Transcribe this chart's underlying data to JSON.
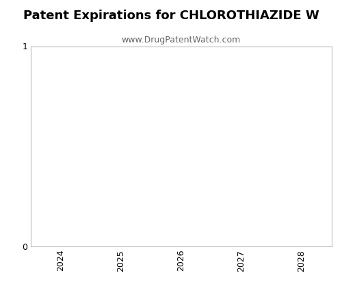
{
  "title": "Patent Expirations for CHLOROTHIAZIDE W",
  "subtitle": "www.DrugPatentWatch.com",
  "title_fontsize": 13,
  "subtitle_fontsize": 9,
  "title_fontweight": "bold",
  "xlim": [
    2023.5,
    2028.5
  ],
  "ylim": [
    0,
    1
  ],
  "xticks": [
    2024,
    2025,
    2026,
    2027,
    2028
  ],
  "yticks": [
    0,
    1
  ],
  "background_color": "#ffffff",
  "axes_facecolor": "#ffffff",
  "spine_color": "#bbbbbb",
  "tick_label_color": "#000000",
  "subtitle_color": "#666666"
}
